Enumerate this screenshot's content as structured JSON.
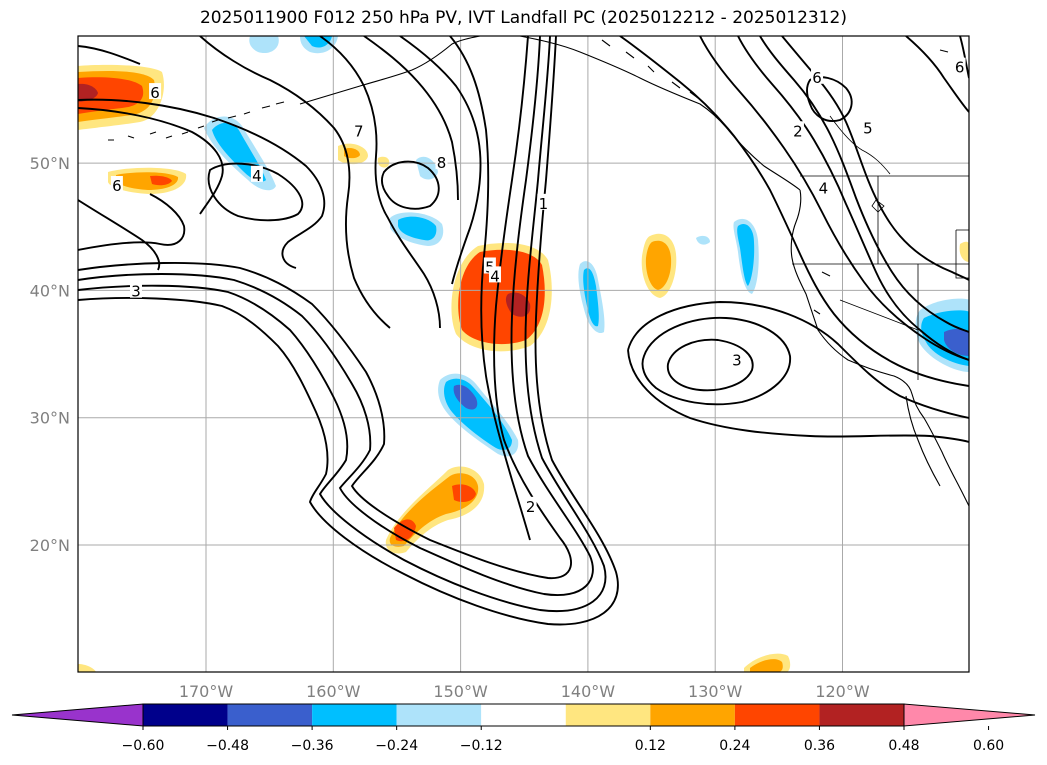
{
  "title": "2025011900 F012 250 hPa PV, IVT Landfall PC (2025012212 - 2025012312)",
  "map": {
    "lat_labels": [
      {
        "text": "50°N",
        "lat": 50
      },
      {
        "text": "40°N",
        "lat": 40
      },
      {
        "text": "30°N",
        "lat": 30
      },
      {
        "text": "20°N",
        "lat": 20
      }
    ],
    "lon_labels": [
      {
        "text": "170°W",
        "lon": -170
      },
      {
        "text": "160°W",
        "lon": -160
      },
      {
        "text": "150°W",
        "lon": -150
      },
      {
        "text": "140°W",
        "lon": -140
      },
      {
        "text": "130°W",
        "lon": -130
      },
      {
        "text": "120°W",
        "lon": -120
      }
    ],
    "contour_labels": [
      {
        "text": "6",
        "lon": -174,
        "lat": 55.5
      },
      {
        "text": "6",
        "lon": -177,
        "lat": 48.2
      },
      {
        "text": "7",
        "lon": -158,
        "lat": 52.5
      },
      {
        "text": "8",
        "lon": -151.5,
        "lat": 50
      },
      {
        "text": "4",
        "lon": -166,
        "lat": 49
      },
      {
        "text": "3",
        "lon": -175.5,
        "lat": 39.9
      },
      {
        "text": "1",
        "lon": -143.5,
        "lat": 46.8
      },
      {
        "text": "5",
        "lon": -147.7,
        "lat": 41.8
      },
      {
        "text": "4",
        "lon": -147.3,
        "lat": 41.1
      },
      {
        "text": "2",
        "lon": -144.5,
        "lat": 23
      },
      {
        "text": "3",
        "lon": -128.3,
        "lat": 34.5
      },
      {
        "text": "2",
        "lon": -123.5,
        "lat": 52.5
      },
      {
        "text": "4",
        "lon": -121.5,
        "lat": 48
      },
      {
        "text": "5",
        "lon": -118,
        "lat": 52.7
      },
      {
        "text": "6",
        "lon": -122,
        "lat": 56.7
      },
      {
        "text": "6",
        "lon": -110.8,
        "lat": 57.5
      }
    ]
  },
  "colorbar": {
    "colors": [
      "#9933cc",
      "#00008b",
      "#3a5fcd",
      "#00bfff",
      "#aee3fa",
      "#ffffff",
      "#ffe680",
      "#ffa500",
      "#ff4500",
      "#b22222",
      "#ff88aa"
    ],
    "tick_labels": [
      "−0.60",
      "−0.48",
      "−0.36",
      "−0.24",
      "−0.12",
      "0.12",
      "0.24",
      "0.36",
      "0.48",
      "0.60"
    ]
  }
}
